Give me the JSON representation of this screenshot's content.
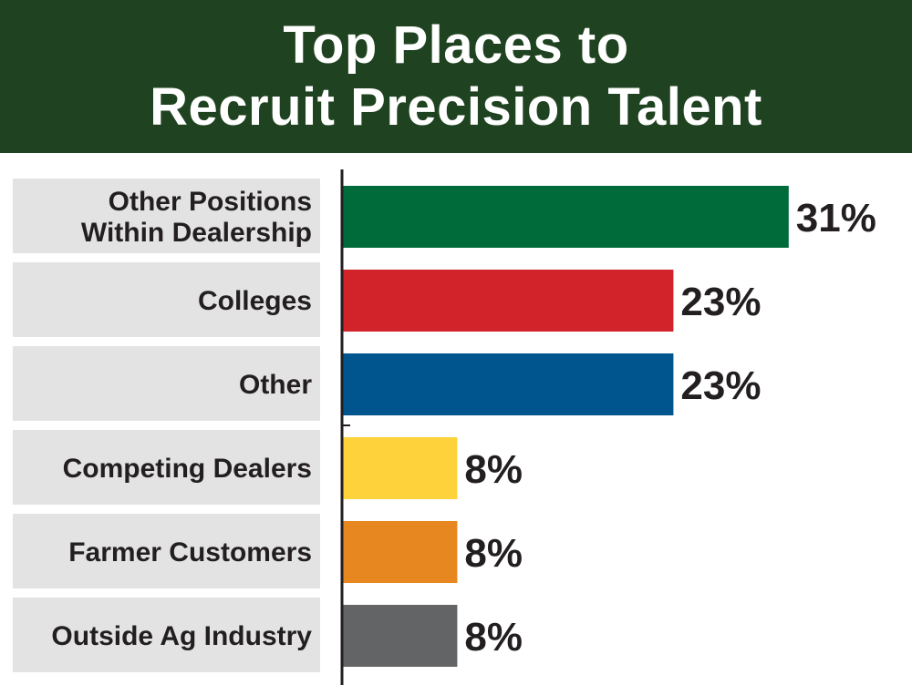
{
  "header": {
    "title_line1": "Top Places to",
    "title_line2": "Recruit Precision Talent",
    "background": "#1f4320"
  },
  "chart_data": {
    "type": "bar",
    "orientation": "horizontal",
    "title": "Top Places to Recruit Precision Talent",
    "categories": [
      [
        "Other Positions",
        "Within Dealership"
      ],
      [
        "Colleges"
      ],
      [
        "Other"
      ],
      [
        "Competing Dealers"
      ],
      [
        "Farmer Customers"
      ],
      [
        "Outside Ag Industry"
      ]
    ],
    "values": [
      31,
      23,
      23,
      8,
      8,
      8
    ],
    "value_labels": [
      "31%",
      "23%",
      "23%",
      "8%",
      "8%",
      "8%"
    ],
    "colors": [
      "#006b3a",
      "#d2232a",
      "#00558f",
      "#fdd23a",
      "#e7871f",
      "#636466"
    ],
    "xlim": [
      0,
      40
    ],
    "grid": false,
    "legend": "none",
    "label_box_color": "#e3e3e4"
  }
}
